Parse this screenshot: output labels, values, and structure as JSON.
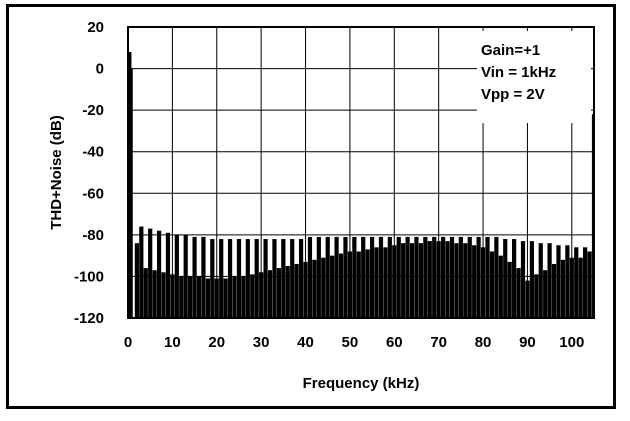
{
  "chart_data": {
    "type": "bar",
    "title": "",
    "xlabel": "Frequency (kHz)",
    "ylabel": "THD+Noise (dB)",
    "xlim": [
      0,
      105
    ],
    "ylim": [
      -120,
      20
    ],
    "x_ticks": [
      "0",
      "10",
      "20",
      "30",
      "40",
      "50",
      "60",
      "70",
      "80",
      "90",
      "100"
    ],
    "y_ticks": [
      "20",
      "0",
      "-20",
      "-40",
      "-60",
      "-80",
      "-100",
      "-120"
    ],
    "grid": true,
    "annotations": [
      "Gain=+1",
      "Vin = 1kHz",
      "Vpp = 2V"
    ],
    "x": [
      0.3,
      0.6,
      2,
      3,
      4,
      5,
      6,
      7,
      8,
      9,
      10,
      11,
      12,
      13,
      14,
      15,
      16,
      17,
      18,
      19,
      20,
      21,
      22,
      23,
      24,
      25,
      26,
      27,
      28,
      29,
      30,
      31,
      32,
      33,
      34,
      35,
      36,
      37,
      38,
      39,
      40,
      41,
      42,
      43,
      44,
      45,
      46,
      47,
      48,
      49,
      50,
      51,
      52,
      53,
      54,
      55,
      56,
      57,
      58,
      59,
      60,
      61,
      62,
      63,
      64,
      65,
      66,
      67,
      68,
      69,
      70,
      71,
      72,
      73,
      74,
      75,
      76,
      77,
      78,
      79,
      80,
      81,
      82,
      83,
      84,
      85,
      86,
      87,
      88,
      89,
      90,
      91,
      92,
      93,
      94,
      95,
      96,
      97,
      98,
      99,
      100,
      101,
      102,
      103,
      104,
      105
    ],
    "values": [
      8,
      0,
      -84,
      -76,
      -96,
      -77,
      -97,
      -78,
      -98,
      -79,
      -99,
      -80,
      -100,
      -80,
      -100,
      -81,
      -100,
      -81,
      -101,
      -82,
      -101,
      -82,
      -101,
      -82,
      -100,
      -82,
      -100,
      -82,
      -99,
      -82,
      -98,
      -82,
      -97,
      -82,
      -96,
      -82,
      -95,
      -82,
      -94,
      -82,
      -93,
      -81,
      -92,
      -81,
      -91,
      -81,
      -90,
      -81,
      -89,
      -81,
      -88,
      -81,
      -88,
      -81,
      -87,
      -81,
      -86,
      -81,
      -86,
      -81,
      -85,
      -81,
      -84,
      -81,
      -84,
      -81,
      -84,
      -81,
      -83,
      -81,
      -83,
      -81,
      -83,
      -81,
      -84,
      -81,
      -84,
      -81,
      -85,
      -81,
      -86,
      -81,
      -88,
      -81,
      -90,
      -82,
      -93,
      -82,
      -96,
      -83,
      -102,
      -83,
      -99,
      -84,
      -97,
      -84,
      -94,
      -85,
      -92,
      -85,
      -91,
      -86,
      -91,
      -86,
      -88,
      -22
    ]
  }
}
